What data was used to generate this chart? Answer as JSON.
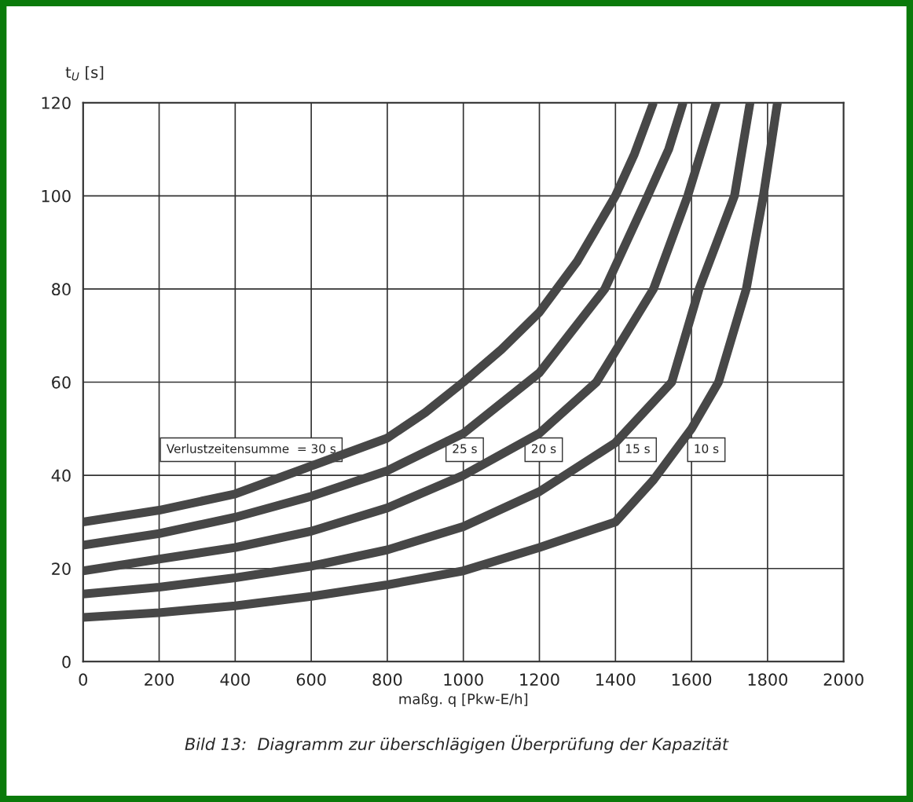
{
  "chart_data": {
    "type": "line",
    "xlabel": "maßg. q [Pkw-E/h]",
    "ylabel": "t$_{U}$ [s]",
    "xlim": [
      0,
      2000
    ],
    "ylim": [
      0,
      120
    ],
    "xticks": [
      0,
      200,
      400,
      600,
      800,
      1000,
      1200,
      1400,
      1600,
      1800,
      2000
    ],
    "yticks": [
      0,
      20,
      40,
      60,
      80,
      100,
      120
    ],
    "grid": true,
    "line_style": "solid",
    "marker": "none",
    "series": [
      {
        "name": "Verlustzeitensumme  = 30 s",
        "color": "#474747",
        "x": [
          0,
          200,
          400,
          600,
          800,
          900,
          1000,
          1100,
          1200,
          1300,
          1400,
          1450,
          1500
        ],
        "values": [
          30,
          32.5,
          36,
          42,
          48,
          53.5,
          60,
          67,
          75,
          86,
          100,
          109,
          120
        ]
      },
      {
        "name": "25 s",
        "color": "#474747",
        "x": [
          0,
          200,
          400,
          600,
          800,
          1000,
          1200,
          1372,
          1485,
          1540,
          1578
        ],
        "values": [
          25,
          27.5,
          31,
          35.5,
          41,
          49,
          62,
          80,
          100,
          110,
          120
        ]
      },
      {
        "name": "20 s",
        "color": "#474747",
        "x": [
          0,
          200,
          400,
          600,
          800,
          1000,
          1200,
          1350,
          1500,
          1590,
          1665
        ],
        "values": [
          19.5,
          22,
          24.5,
          28,
          33,
          40,
          49,
          60,
          80,
          100,
          120
        ]
      },
      {
        "name": "15 s",
        "color": "#474747",
        "x": [
          0,
          200,
          400,
          600,
          800,
          1000,
          1200,
          1400,
          1548,
          1620,
          1713,
          1754
        ],
        "values": [
          14.5,
          16,
          18,
          20.5,
          24,
          29,
          36.5,
          47,
          60,
          80,
          100,
          120
        ]
      },
      {
        "name": "10 s",
        "color": "#474747",
        "x": [
          0,
          200,
          400,
          600,
          800,
          1000,
          1200,
          1400,
          1500,
          1600,
          1671,
          1744,
          1789,
          1826
        ],
        "values": [
          9.5,
          10.5,
          12,
          14,
          16.5,
          19.5,
          24.5,
          30,
          39,
          50,
          60,
          80,
          100,
          120
        ]
      }
    ],
    "annotations": [
      "Bild 13:  Diagramm zur überschlägigen Überprüfung der Kapazität"
    ]
  }
}
